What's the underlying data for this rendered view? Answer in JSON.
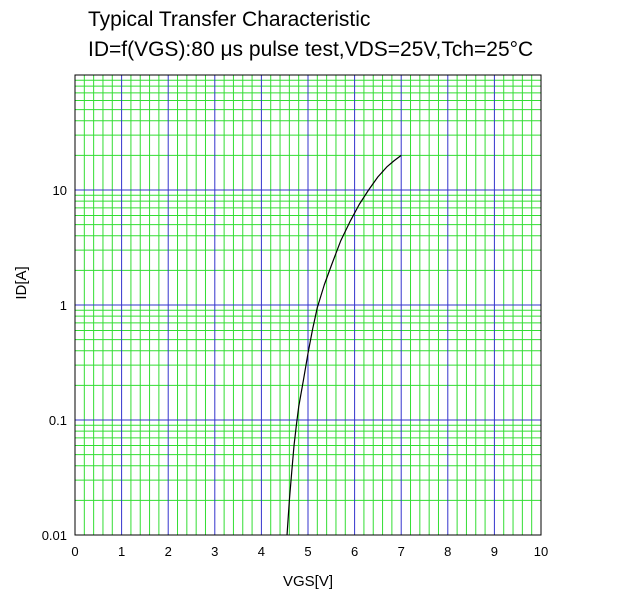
{
  "chart_data": {
    "type": "line",
    "title": "Typical Transfer Characteristic",
    "subtitle": "ID=f(VGS):80 μs pulse test,VDS=25V,Tch=25°C",
    "xlabel": "VGS[V]",
    "ylabel": "ID[A]",
    "xlim": [
      0,
      10
    ],
    "ylim": [
      0.01,
      100
    ],
    "y_scale": "log",
    "x_ticks": [
      "0",
      "1",
      "2",
      "3",
      "4",
      "5",
      "6",
      "7",
      "8",
      "9",
      "10"
    ],
    "y_ticks": [
      {
        "value": 0.01,
        "label": "0.01"
      },
      {
        "value": 0.1,
        "label": "0.1"
      },
      {
        "value": 1,
        "label": "1"
      },
      {
        "value": 10,
        "label": "10"
      }
    ],
    "grid": true,
    "grid_colors": {
      "major": "#3333cc",
      "minor": "#33dd33",
      "frame": "#000000"
    },
    "series": [
      {
        "color": "#000000",
        "x": [
          4.55,
          4.6,
          4.65,
          4.7,
          4.75,
          4.8,
          4.9,
          5.0,
          5.1,
          5.2,
          5.35,
          5.5,
          5.7,
          5.9,
          6.1,
          6.3,
          6.5,
          6.7,
          6.85,
          7.0
        ],
        "y": [
          0.01,
          0.02,
          0.035,
          0.06,
          0.09,
          0.13,
          0.22,
          0.38,
          0.62,
          0.95,
          1.5,
          2.2,
          3.6,
          5.3,
          7.5,
          10,
          13,
          16,
          18,
          20
        ]
      }
    ]
  }
}
